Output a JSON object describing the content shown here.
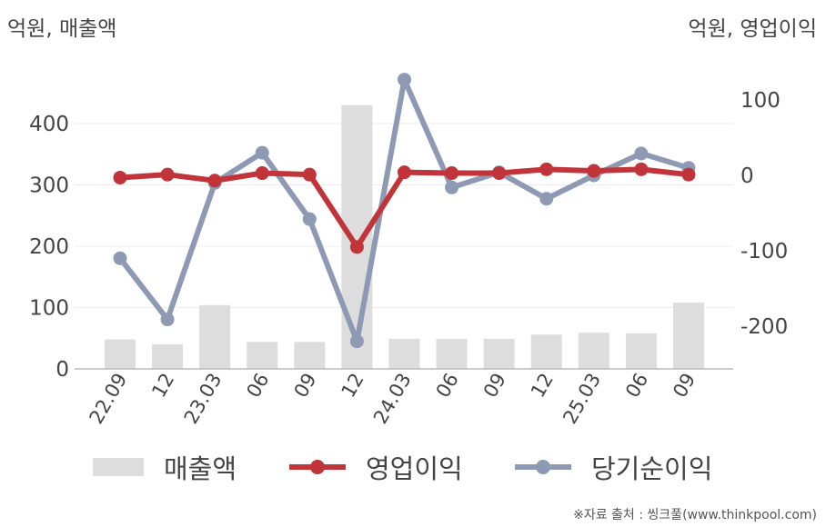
{
  "unit_left": "억원, 매출액",
  "unit_right": "억원, 영업이익",
  "source": "※자료 출처 : 씽크풀(www.thinkpool.com)",
  "colors": {
    "revenue": "#dddddd",
    "operating_profit": "#c0343a",
    "net_profit": "#8e9ab4"
  },
  "chart_data": {
    "type": "bar",
    "categories": [
      "22.09",
      "12",
      "23.03",
      "06",
      "09",
      "12",
      "24.03",
      "06",
      "09",
      "12",
      "25.03",
      "06",
      "09"
    ],
    "left_axis": {
      "label": "억원, 매출액",
      "ylim": [
        0,
        480
      ],
      "ticks": [
        0,
        100,
        200,
        300,
        400
      ]
    },
    "right_axis": {
      "label": "억원, 영업이익",
      "ylim": [
        -255,
        140
      ],
      "ticks": [
        100,
        0,
        -100,
        -200
      ]
    },
    "grid": true,
    "legend_position": "bottom",
    "series": [
      {
        "name": "매출액",
        "type": "bar",
        "axis": "left",
        "values": [
          48,
          40,
          104,
          44,
          44,
          430,
          49,
          49,
          49,
          56,
          59,
          58,
          108
        ]
      },
      {
        "name": "영업이익",
        "type": "line",
        "axis": "right",
        "values": [
          -3,
          1,
          -7,
          3,
          1,
          -95,
          4,
          3,
          3,
          8,
          6,
          8,
          1
        ]
      },
      {
        "name": "당기순이익",
        "type": "line",
        "axis": "right",
        "values": [
          -110,
          -191,
          -10,
          30,
          -58,
          -220,
          127,
          -16,
          4,
          -31,
          0,
          29,
          10
        ]
      }
    ]
  }
}
